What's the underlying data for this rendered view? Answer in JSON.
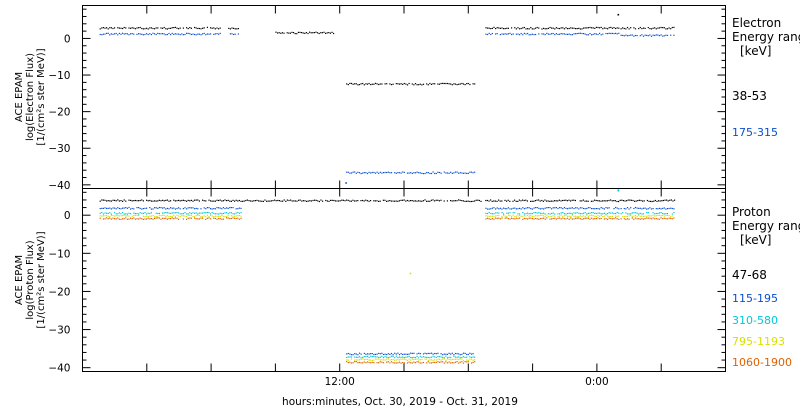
{
  "x_axis": {
    "label": "hours:minutes, Oct. 30, 2019 - Oct. 31, 2019",
    "tick_labels": [
      "12:00",
      "0:00"
    ]
  },
  "chart_data": [
    {
      "type": "scatter",
      "panel": "top",
      "ylabel_lines": [
        "ACE EPAM",
        "log(Electron Flux)",
        "[1/(cm²s ster MeV)]"
      ],
      "legend_title_lines": [
        "Electron",
        "Energy ranges",
        "[keV]"
      ],
      "xlim_hours": [
        0,
        30
      ],
      "ylim": [
        -41,
        9
      ],
      "yticks": [
        0,
        -10,
        -20,
        -30,
        -40
      ],
      "ytick_labels": [
        "0",
        "−10",
        "−20",
        "−30",
        "−40"
      ],
      "grid": false,
      "legend": "right",
      "series": [
        {
          "name": "38-53",
          "color": "#000000",
          "segments": [
            {
              "x": [
                0.8,
                6.4
              ],
              "y": 2.8
            },
            {
              "x": [
                6.8,
                7.3
              ],
              "y": 2.8
            },
            {
              "x": [
                9.0,
                11.7
              ],
              "y": 1.5
            },
            {
              "x": [
                12.3,
                18.3
              ],
              "y": -12.5
            },
            {
              "x": [
                18.8,
                25.0
              ],
              "y": 2.8
            },
            {
              "x": [
                25.1,
                27.6
              ],
              "y": 2.8
            }
          ],
          "points": [
            {
              "x": 25.0,
              "y": 6.5
            }
          ]
        },
        {
          "name": "175-315",
          "color": "#0a4fd0",
          "segments": [
            {
              "x": [
                0.8,
                6.4
              ],
              "y": 1.2
            },
            {
              "x": [
                6.8,
                7.3
              ],
              "y": 1.2
            },
            {
              "x": [
                12.3,
                18.3
              ],
              "y": -36.7
            },
            {
              "x": [
                18.8,
                25.0
              ],
              "y": 1.2
            },
            {
              "x": [
                25.1,
                27.6
              ],
              "y": 0.8
            }
          ],
          "points": [
            {
              "x": 12.3,
              "y": -39.5
            }
          ]
        }
      ]
    },
    {
      "type": "scatter",
      "panel": "bottom",
      "ylabel_lines": [
        "ACE EPAM",
        "log(Proton Flux)",
        "[1/(cm²s ster MeV)]"
      ],
      "legend_title_lines": [
        "Proton",
        "Energy ranges",
        "[keV]"
      ],
      "xlim_hours": [
        0,
        30
      ],
      "ylim": [
        -41,
        7
      ],
      "yticks": [
        0,
        -10,
        -20,
        -30,
        -40
      ],
      "ytick_labels": [
        "0",
        "−10",
        "−20",
        "−30",
        "−40"
      ],
      "grid": false,
      "legend": "right",
      "series": [
        {
          "name": "47-68",
          "color": "#000000",
          "segments": [
            {
              "x": [
                0.8,
                27.6
              ],
              "y": 3.8
            }
          ],
          "points": [
            {
              "x": 25.0,
              "y": 6.5
            }
          ]
        },
        {
          "name": "115-195",
          "color": "#0a4fd0",
          "segments": [
            {
              "x": [
                0.8,
                7.4
              ],
              "y": 1.8
            },
            {
              "x": [
                12.3,
                18.3
              ],
              "y": -36.4
            },
            {
              "x": [
                18.8,
                25.0
              ],
              "y": 1.8
            },
            {
              "x": [
                25.1,
                27.6
              ],
              "y": 1.8
            }
          ],
          "points": []
        },
        {
          "name": "310-580",
          "color": "#00c8d8",
          "segments": [
            {
              "x": [
                0.8,
                7.4
              ],
              "y": 0.5
            },
            {
              "x": [
                12.3,
                18.3
              ],
              "y": -37.2
            },
            {
              "x": [
                18.8,
                25.0
              ],
              "y": 0.5
            },
            {
              "x": [
                25.1,
                27.6
              ],
              "y": 0.5
            }
          ],
          "points": [
            {
              "x": 25.0,
              "y": 6.5
            }
          ]
        },
        {
          "name": "795-1193",
          "color": "#d8e000",
          "segments": [
            {
              "x": [
                0.8,
                7.4
              ],
              "y": -0.2
            },
            {
              "x": [
                12.3,
                18.3
              ],
              "y": -37.9
            },
            {
              "x": [
                18.8,
                25.0
              ],
              "y": -0.2
            },
            {
              "x": [
                25.1,
                27.6
              ],
              "y": -0.2
            }
          ],
          "points": [
            {
              "x": 15.3,
              "y": -15.3
            }
          ]
        },
        {
          "name": "1060-1900",
          "color": "#e06000",
          "segments": [
            {
              "x": [
                0.8,
                7.4
              ],
              "y": -0.9
            },
            {
              "x": [
                12.3,
                18.3
              ],
              "y": -38.6
            },
            {
              "x": [
                18.8,
                25.0
              ],
              "y": -0.9
            },
            {
              "x": [
                25.1,
                27.6
              ],
              "y": -0.9
            }
          ],
          "points": []
        }
      ]
    }
  ]
}
